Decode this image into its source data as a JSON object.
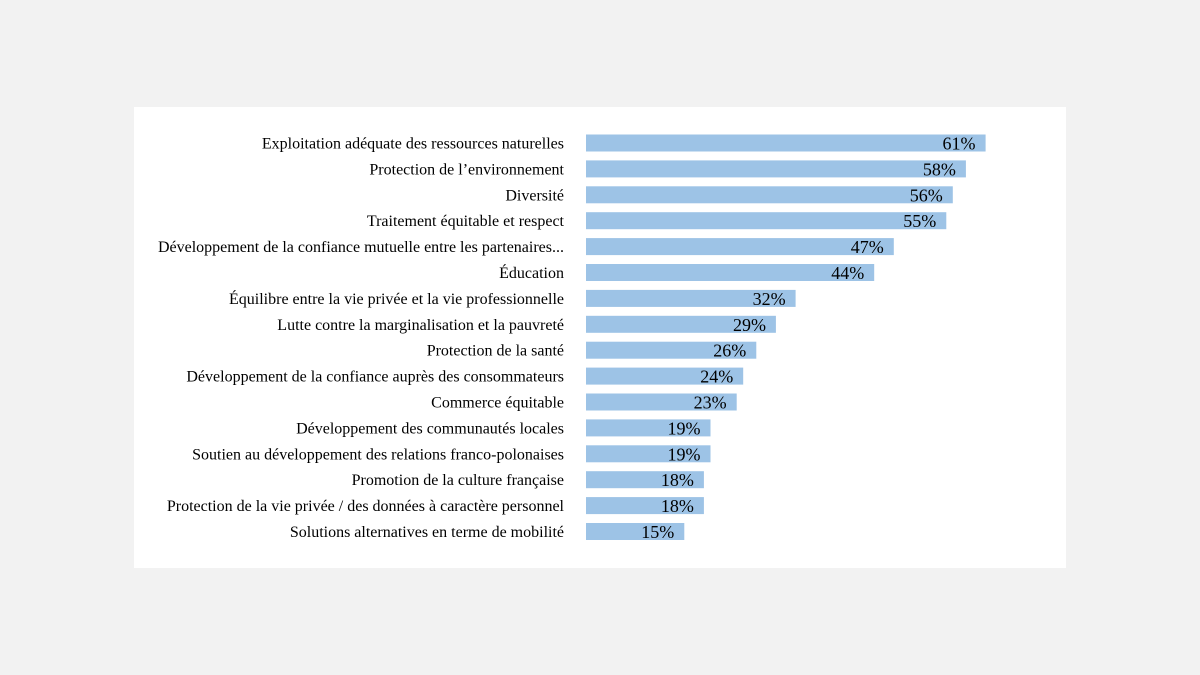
{
  "chart_data": {
    "type": "bar",
    "orientation": "horizontal",
    "title": "",
    "xlabel": "",
    "ylabel": "",
    "value_suffix": "%",
    "xlim": [
      0,
      100
    ],
    "bar_color": "#9dc3e6",
    "background": "#ffffff",
    "categories": [
      "Exploitation adéquate des ressources naturelles",
      "Protection de l’environnement",
      "Diversité",
      "Traitement équitable et respect",
      "Développement de la confiance mutuelle entre les partenaires...",
      "Éducation",
      "Équilibre entre la vie privée et la vie professionnelle",
      "Lutte contre la marginalisation et la pauvreté",
      "Protection de la santé",
      "Développement de la confiance auprès des consommateurs",
      "Commerce équitable",
      "Développement des communautés locales",
      "Soutien au développement des relations franco-polonaises",
      "Promotion de la culture française",
      "Protection de la vie privée / des données à caractère personnel",
      "Solutions alternatives en terme de mobilité"
    ],
    "values": [
      61,
      58,
      56,
      55,
      47,
      44,
      32,
      29,
      26,
      24,
      23,
      19,
      19,
      18,
      18,
      15
    ]
  }
}
